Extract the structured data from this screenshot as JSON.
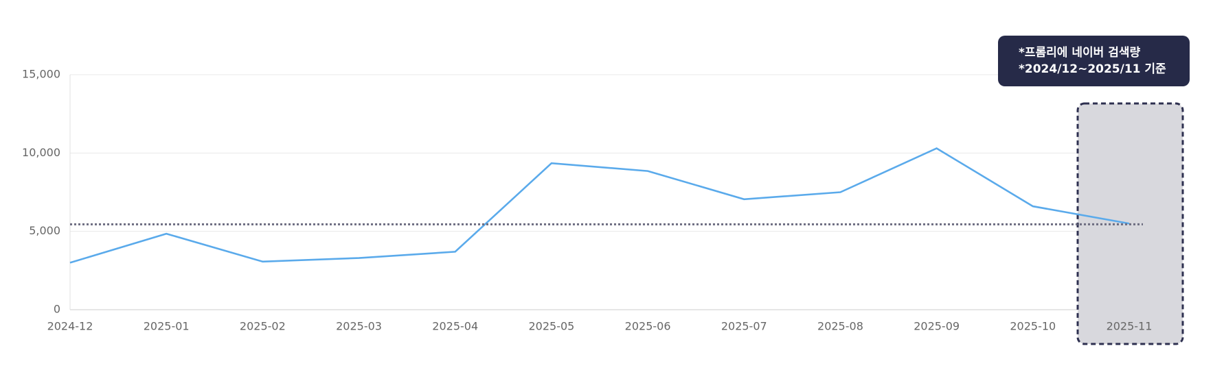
{
  "chart_data": {
    "type": "line",
    "categories": [
      "2024-12",
      "2025-01",
      "2025-02",
      "2025-03",
      "2025-04",
      "2025-05",
      "2025-06",
      "2025-07",
      "2025-08",
      "2025-09",
      "2025-10",
      "2025-11"
    ],
    "series": [
      {
        "name": "프롬리에 네이버 검색량",
        "color": "#5aaaeb",
        "values": [
          3000,
          4850,
          3070,
          3300,
          3700,
          9350,
          8850,
          7050,
          7500,
          10300,
          6600,
          5500
        ]
      }
    ],
    "reference_line": 5450,
    "ylim": [
      0,
      15000
    ],
    "yticks": [
      0,
      {
        "value": 5000,
        "label": "5,000"
      },
      {
        "value": 10000,
        "label": "10,000"
      },
      {
        "value": 15000,
        "label": "15,000"
      }
    ],
    "grid": true,
    "annotations": [
      "*프롬리에 네이버 검색량",
      "*2024/12~2025/11 기준"
    ]
  }
}
